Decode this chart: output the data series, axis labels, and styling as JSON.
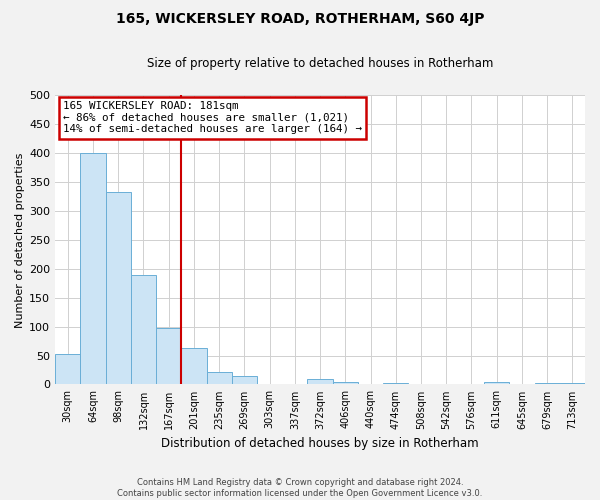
{
  "title": "165, WICKERSLEY ROAD, ROTHERHAM, S60 4JP",
  "subtitle": "Size of property relative to detached houses in Rotherham",
  "bar_labels": [
    "30sqm",
    "64sqm",
    "98sqm",
    "132sqm",
    "167sqm",
    "201sqm",
    "235sqm",
    "269sqm",
    "303sqm",
    "337sqm",
    "372sqm",
    "406sqm",
    "440sqm",
    "474sqm",
    "508sqm",
    "542sqm",
    "576sqm",
    "611sqm",
    "645sqm",
    "679sqm",
    "713sqm"
  ],
  "bar_values": [
    52,
    401,
    333,
    190,
    98,
    63,
    22,
    14,
    0,
    0,
    10,
    4,
    0,
    2,
    0,
    0,
    0,
    5,
    0,
    2,
    2
  ],
  "bar_color": "#cce4f5",
  "bar_edge_color": "#6aaed6",
  "vline_x_idx": 4,
  "vline_color": "#cc0000",
  "annotation_title": "165 WICKERSLEY ROAD: 181sqm",
  "annotation_line1": "← 86% of detached houses are smaller (1,021)",
  "annotation_line2": "14% of semi-detached houses are larger (164) →",
  "annotation_box_color": "#cc0000",
  "ylabel": "Number of detached properties",
  "xlabel": "Distribution of detached houses by size in Rotherham",
  "ylim": [
    0,
    500
  ],
  "yticks": [
    0,
    50,
    100,
    150,
    200,
    250,
    300,
    350,
    400,
    450,
    500
  ],
  "footer_line1": "Contains HM Land Registry data © Crown copyright and database right 2024.",
  "footer_line2": "Contains public sector information licensed under the Open Government Licence v3.0.",
  "bg_color": "#f2f2f2",
  "plot_bg_color": "#ffffff",
  "grid_color": "#d0d0d0"
}
